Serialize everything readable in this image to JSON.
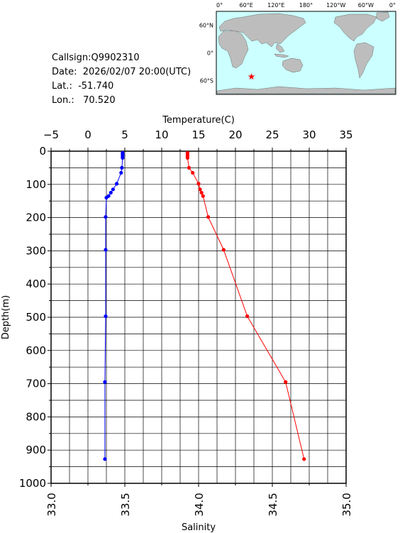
{
  "info": {
    "callsign": "Callsign:Q9902310",
    "date": "Date:  2026/02/07 20:00(UTC)",
    "lat": "Lat.:  -51.740",
    "lon": "Lon.:   70.520"
  },
  "map": {
    "top_ticks": [
      "0°",
      "60°E",
      "120°E",
      "180°",
      "120°W",
      "60°W",
      "0°"
    ],
    "left_ticks": [
      "60°N",
      "0°",
      "60°S"
    ],
    "ocean_color": "#ccffff",
    "land_color": "#bdbdbd",
    "marker_color": "#ff0000",
    "marker_icon": "star-icon",
    "marker_position": {
      "lon": 70.52,
      "lat": -51.74
    }
  },
  "chart_data": {
    "type": "line",
    "title": "",
    "ylabel": "Depth(m)",
    "ylim": [
      0,
      1000
    ],
    "y_ticks": [
      0,
      100,
      200,
      300,
      400,
      500,
      600,
      700,
      800,
      900,
      1000
    ],
    "grid": true,
    "top_axis": {
      "label": "Temperature(C)",
      "lim": [
        -5,
        35
      ],
      "ticks": [
        -5,
        0,
        5,
        10,
        15,
        20,
        25,
        30,
        35
      ],
      "tick_labels": [
        "−5",
        "0",
        "5",
        "10",
        "15",
        "20",
        "25",
        "30",
        "35"
      ]
    },
    "bottom_axis": {
      "label": "Salinity",
      "lim": [
        33.0,
        35.0
      ],
      "ticks": [
        33.0,
        33.5,
        34.0,
        34.5,
        35.0
      ],
      "tick_labels": [
        "33.0",
        "33.5",
        "34.0",
        "34.5",
        "35.0"
      ]
    },
    "series": [
      {
        "axis": "top",
        "color": "#ff0000",
        "points": [
          {
            "depth": 5,
            "value": 13.5
          },
          {
            "depth": 10,
            "value": 13.5
          },
          {
            "depth": 15,
            "value": 13.5
          },
          {
            "depth": 20,
            "value": 13.5
          },
          {
            "depth": 50,
            "value": 13.7
          },
          {
            "depth": 65,
            "value": 14.2
          },
          {
            "depth": 98,
            "value": 15.0
          },
          {
            "depth": 115,
            "value": 15.2
          },
          {
            "depth": 125,
            "value": 15.4
          },
          {
            "depth": 135,
            "value": 15.6
          },
          {
            "depth": 198,
            "value": 16.3
          },
          {
            "depth": 297,
            "value": 18.4
          },
          {
            "depth": 497,
            "value": 21.6
          },
          {
            "depth": 695,
            "value": 26.8
          },
          {
            "depth": 927,
            "value": 29.3
          }
        ]
      },
      {
        "axis": "top",
        "color": "#0000ff",
        "points": [
          {
            "depth": 5,
            "value": 4.7
          },
          {
            "depth": 10,
            "value": 4.7
          },
          {
            "depth": 15,
            "value": 4.7
          },
          {
            "depth": 20,
            "value": 4.7
          },
          {
            "depth": 50,
            "value": 4.6
          },
          {
            "depth": 65,
            "value": 4.5
          },
          {
            "depth": 98,
            "value": 3.9
          },
          {
            "depth": 115,
            "value": 3.4
          },
          {
            "depth": 125,
            "value": 3.1
          },
          {
            "depth": 135,
            "value": 2.8
          },
          {
            "depth": 140,
            "value": 2.5
          },
          {
            "depth": 198,
            "value": 2.4
          },
          {
            "depth": 297,
            "value": 2.4
          },
          {
            "depth": 497,
            "value": 2.4
          },
          {
            "depth": 695,
            "value": 2.3
          },
          {
            "depth": 927,
            "value": 2.3
          }
        ]
      }
    ]
  }
}
